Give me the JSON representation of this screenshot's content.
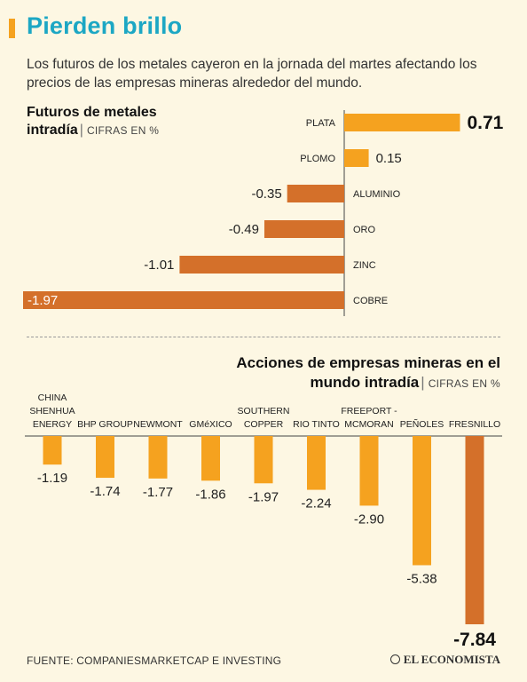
{
  "header": {
    "title": "Pierden brillo",
    "subtitle": "Los futuros de los metales cayeron en la jornada del martes afectando los precios de las empresas mineras alrededor del mundo.",
    "accent_color": "#f5a21f",
    "title_color": "#1ca7c4"
  },
  "chart_data": [
    {
      "type": "bar",
      "orientation": "horizontal",
      "title_line1": "Futuros de metales",
      "title_line2": "intradía",
      "units": "CIFRAS EN %",
      "categories": [
        "PLATA",
        "PLOMO",
        "ALUMINIO",
        "ORO",
        "ZINC",
        "COBRE"
      ],
      "values": [
        0.71,
        0.15,
        -0.35,
        -0.49,
        -1.01,
        -1.97
      ],
      "value_labels": [
        "0.71",
        "0.15",
        "-0.35",
        "-0.49",
        "-1.01",
        "-1.97"
      ],
      "positive_color": "#f5a21f",
      "negative_color": "#d4702a"
    },
    {
      "type": "bar",
      "orientation": "vertical",
      "title_line1": "Acciones de empresas mineras en el",
      "title_line2": "mundo intradía",
      "units": "CIFRAS EN %",
      "categories": [
        [
          "CHINA",
          "SHENHUA",
          "ENERGY"
        ],
        [
          "BHP GROUP"
        ],
        [
          "NEWMONT"
        ],
        [
          "GMéXICO"
        ],
        [
          "SOUTHERN",
          "COPPER"
        ],
        [
          "RIO TINTO"
        ],
        [
          "FREEPORT -",
          "MCMORAN"
        ],
        [
          "PEÑOLES"
        ],
        [
          "FRESNILLO"
        ]
      ],
      "values": [
        -1.19,
        -1.74,
        -1.77,
        -1.86,
        -1.97,
        -2.24,
        -2.9,
        -5.38,
        -7.84
      ],
      "value_labels": [
        "-1.19",
        "-1.74",
        "-1.77",
        "-1.86",
        "-1.97",
        "-2.24",
        "-2.90",
        "-5.38",
        "-7.84"
      ],
      "bar_color": "#f5a21f",
      "highlight_color": "#d4702a"
    }
  ],
  "footer": {
    "source": "FUENTE: COMPANIESMARKETCAP E INVESTING",
    "logo": "EL ECONOMISTA"
  }
}
